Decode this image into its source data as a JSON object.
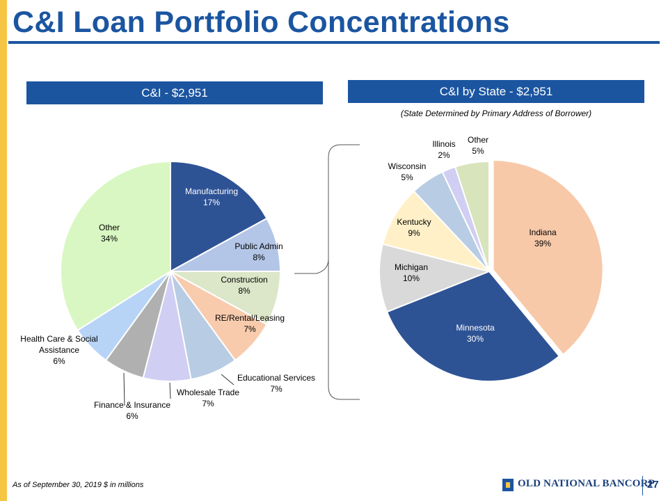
{
  "title": "C&I Loan Portfolio Concentrations",
  "left_header": "C&I  - $2,951",
  "right_header": "C&I by State - $2,951",
  "right_subtitle": "(State Determined by Primary Address of Borrower)",
  "footnote": "As of September 30, 2019 $ in millions",
  "logo_text": "OLD NATIONAL BANCORP",
  "page_number": "27",
  "colors": {
    "brand_blue": "#1b55a0",
    "accent_gold": "#f5c543"
  },
  "chart_data": [
    {
      "type": "pie",
      "title": "C&I  - $2,951",
      "slices": [
        {
          "label": "Manufacturing",
          "pct_label": "17%",
          "value": 17,
          "color": "#2e5395"
        },
        {
          "label": "Public Admin",
          "pct_label": "8%",
          "value": 8,
          "color": "#b4c6e7"
        },
        {
          "label": "Construction",
          "pct_label": "8%",
          "value": 8,
          "color": "#dce6c8"
        },
        {
          "label": "RE/Rental/Leasing",
          "pct_label": "7%",
          "value": 7,
          "color": "#f8cbad"
        },
        {
          "label": "Educational Services",
          "pct_label": "7%",
          "value": 7,
          "color": "#b8cce4"
        },
        {
          "label": "Wholesale Trade",
          "pct_label": "7%",
          "value": 7,
          "color": "#d0cef2"
        },
        {
          "label": "Finance & Insurance",
          "pct_label": "6%",
          "value": 6,
          "color": "#b0b0b0"
        },
        {
          "label": "Health Care & Social Assistance",
          "pct_label": "6%",
          "value": 6,
          "color": "#b7d4f7"
        },
        {
          "label": "Other",
          "pct_label": "34%",
          "value": 34,
          "color": "#d9f7c2"
        }
      ]
    },
    {
      "type": "pie",
      "title": "C&I by State - $2,951",
      "slices": [
        {
          "label": "Indiana",
          "pct_label": "39%",
          "value": 39,
          "color": "#f7c9a9"
        },
        {
          "label": "Minnesota",
          "pct_label": "30%",
          "value": 30,
          "color": "#2e5395"
        },
        {
          "label": "Michigan",
          "pct_label": "10%",
          "value": 10,
          "color": "#d9d9d9"
        },
        {
          "label": "Kentucky",
          "pct_label": "9%",
          "value": 9,
          "color": "#fff0c8"
        },
        {
          "label": "Wisconsin",
          "pct_label": "5%",
          "value": 5,
          "color": "#b8cce4"
        },
        {
          "label": "Illinois",
          "pct_label": "2%",
          "value": 2,
          "color": "#d0cef2"
        },
        {
          "label": "Other",
          "pct_label": "5%",
          "value": 5,
          "color": "#d8e4bc"
        }
      ]
    }
  ]
}
